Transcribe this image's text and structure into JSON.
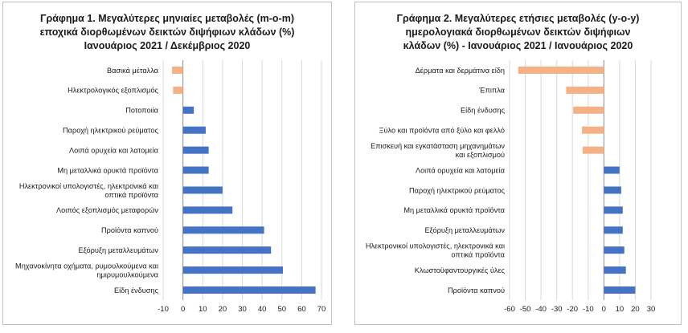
{
  "chart_data": [
    {
      "type": "bar",
      "orientation": "horizontal",
      "title_lines": [
        "Γράφημα 1. Μεγαλύτερες μηνιαίες μεταβολές (m-o-m)",
        "εποχικά διορθωμένων δεικτών διψήφιων κλάδων (%)",
        "Ιανουάριος 2021 / Δεκέμβριος 2020"
      ],
      "categories": [
        [
          "Βασικά μέταλλα"
        ],
        [
          "Ηλεκτρολογικός εξοπλισμός"
        ],
        [
          "Ποτοποιία"
        ],
        [
          "Παροχή ηλεκτρικού ρεύματος"
        ],
        [
          "Λοιπά ορυχεία και λατομεία"
        ],
        [
          "Μη μεταλλικά ορυκτά προϊόντα"
        ],
        [
          "Ηλεκτρονικοί υπολογιστές, ηλεκτρονικά και",
          "οπτικά προϊόντα"
        ],
        [
          "Λοιπός εξοπλισμός μεταφορών"
        ],
        [
          "Προϊόντα καπνού"
        ],
        [
          "Εξόρυξη μεταλλευμάτων"
        ],
        [
          "Μηχανοκίνητα οχήματα, ρυμουλκούμενα και",
          "ημιρυμουλκούμενα"
        ],
        [
          "Είδη ένδυσης"
        ]
      ],
      "values": [
        -5.5,
        -5,
        5.5,
        11.5,
        13,
        13,
        20,
        25,
        41,
        44.5,
        50.5,
        67
      ],
      "xlim": [
        -10,
        70
      ],
      "xticks": [
        -10,
        0,
        10,
        20,
        30,
        40,
        50,
        60,
        70
      ],
      "grid": true,
      "colors": {
        "positive": "#4472c4",
        "negative": "#f4b183"
      }
    },
    {
      "type": "bar",
      "orientation": "horizontal",
      "title_lines": [
        "Γράφημα 2. Μεγαλύτερες ετήσιες μεταβολές (y-o-y)",
        "ημερολογιακά διορθωμένων δεικτών διψήφιων",
        "κλάδων (%) - Ιανουάριος 2021 / Ιανουάριος 2020"
      ],
      "categories": [
        [
          "Δέρματα και δερμάτινα είδη"
        ],
        [
          "Έπιπλα"
        ],
        [
          "Είδη ένδυσης"
        ],
        [
          "Ξύλο και προϊόντα από ξύλο και φελλό"
        ],
        [
          "Επισκευή και εγκατάσταση μηχανημάτων",
          "και εξοπλισμού"
        ],
        [
          "Λοιπά ορυχεία και λατομεία"
        ],
        [
          "Παροχή ηλεκτρικού ρεύματος"
        ],
        [
          "Μη μεταλλικά ορυκτά προϊόντα"
        ],
        [
          "Εξόρυξη μεταλλευμάτων"
        ],
        [
          "Ηλεκτρονικοί υπολογιστές, ηλεκτρονικά και",
          "οπτικά προϊόντα"
        ],
        [
          "Κλωστοϋφαντουργικές ύλες"
        ],
        [
          "Προϊόντα καπνού"
        ]
      ],
      "values": [
        -54.5,
        -24,
        -19.5,
        -14,
        -13.5,
        10,
        11,
        12,
        12,
        13,
        14,
        20
      ],
      "xlim": [
        -60,
        30
      ],
      "xticks": [
        -60,
        -50,
        -40,
        -30,
        -20,
        -10,
        0,
        10,
        20,
        30
      ],
      "grid": true,
      "colors": {
        "positive": "#4472c4",
        "negative": "#f4b183"
      }
    }
  ]
}
